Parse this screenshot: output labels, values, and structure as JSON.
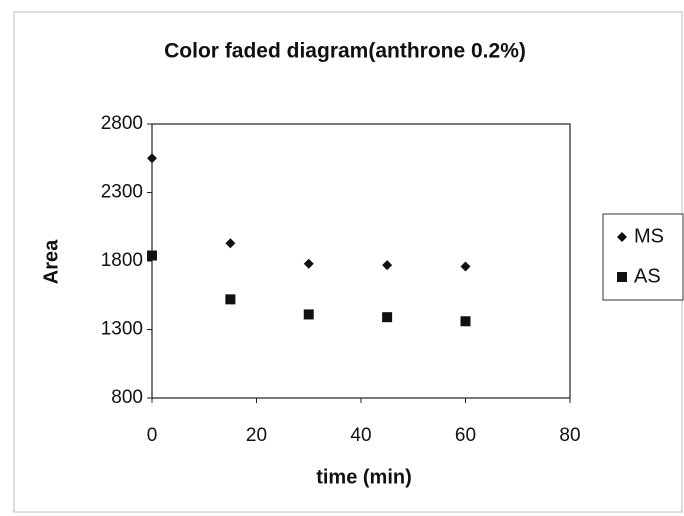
{
  "chart_data": {
    "type": "scatter",
    "title": "Color faded diagram(anthrone 0.2%)",
    "x_label": "time (min)",
    "y_label": "Area",
    "xlim": [
      0,
      80
    ],
    "xticks": [
      0,
      20,
      40,
      60,
      80
    ],
    "ylim": [
      800,
      2800
    ],
    "yticks": [
      800,
      1300,
      1800,
      2300,
      2800
    ],
    "legend": "right",
    "series": [
      {
        "name": "MS",
        "color": "#111111",
        "marker": "diamond",
        "x": [
          0,
          15,
          30,
          45,
          60
        ],
        "values": [
          2550,
          1930,
          1780,
          1770,
          1760
        ]
      },
      {
        "name": "AS",
        "color": "#111111",
        "marker": "square",
        "x": [
          0,
          15,
          30,
          45,
          60
        ],
        "values": [
          1840,
          1520,
          1410,
          1390,
          1360
        ]
      }
    ]
  }
}
